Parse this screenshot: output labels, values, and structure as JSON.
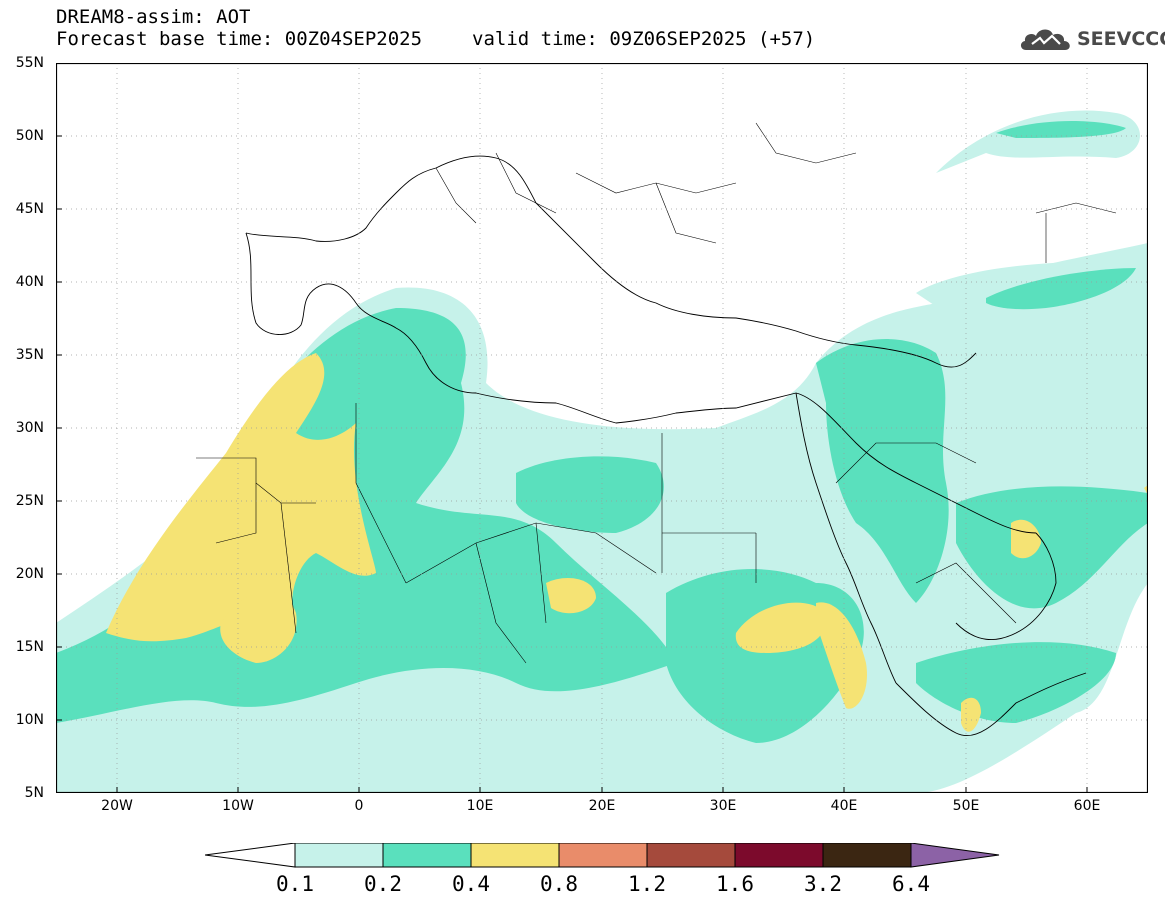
{
  "header": {
    "title": "DREAM8-assim: AOT",
    "base_time": "Forecast base time: 00Z04SEP2025",
    "valid_time": "valid time: 09Z06SEP2025 (+57)"
  },
  "logo": {
    "text": "SEEVCCC",
    "icon": "cloud-icon"
  },
  "map": {
    "lat_labels": [
      "55N",
      "50N",
      "45N",
      "40N",
      "35N",
      "30N",
      "25N",
      "20N",
      "15N",
      "10N",
      "5N"
    ],
    "lon_labels": [
      "20W",
      "10W",
      "0",
      "10E",
      "20E",
      "30E",
      "40E",
      "50E",
      "60E"
    ],
    "lat_range": [
      5,
      55
    ],
    "lon_range": [
      -25,
      65
    ]
  },
  "colorbar": {
    "labels": [
      "0.1",
      "0.2",
      "0.4",
      "0.8",
      "1.2",
      "1.6",
      "3.2",
      "6.4"
    ],
    "colors": [
      "#c6f2ea",
      "#5ae0bd",
      "#f5e374",
      "#e98c6a",
      "#a54a3c",
      "#7c0a2c",
      "#3b2612",
      "#8c62a6"
    ]
  }
}
